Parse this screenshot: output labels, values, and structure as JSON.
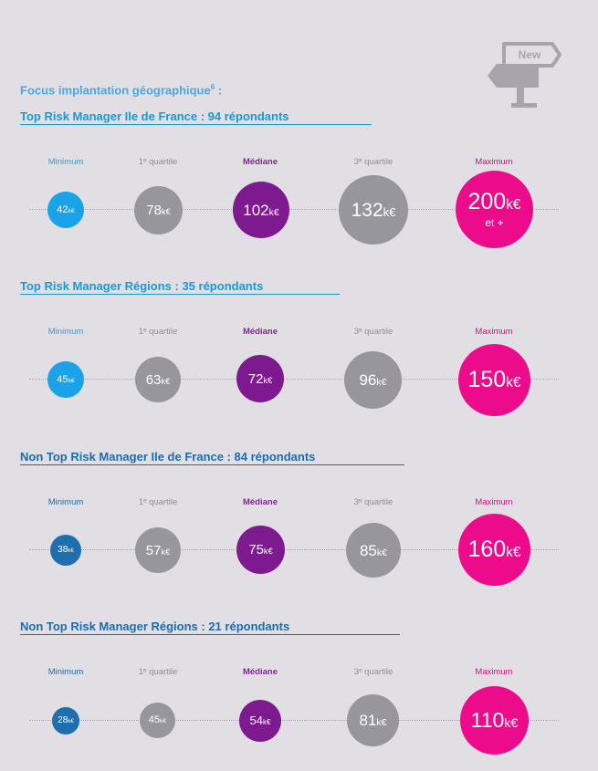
{
  "header": {
    "focus_title": "Focus implantation géographique",
    "focus_footnote": "6",
    "focus_suffix": " :",
    "new_badge": "New"
  },
  "labels": {
    "minimum": "Minimum",
    "q1": "1ᵉ quartile",
    "median": "Médiane",
    "q3": "3ᵉ quartile",
    "maximum": "Maximum"
  },
  "sections": [
    {
      "title": "Top Risk Manager Ile de France : 94 répondants",
      "minimum": "42",
      "q1": "78",
      "median": "102",
      "q3": "132",
      "maximum": "200",
      "maximum_extra": "et +"
    },
    {
      "title": "Top Risk Manager Régions : 35 répondants",
      "minimum": "45",
      "q1": "63",
      "median": "72",
      "q3": "96",
      "maximum": "150"
    },
    {
      "title": "Non Top Risk Manager Ile de France : 84 répondants",
      "minimum": "38",
      "q1": "57",
      "median": "75",
      "q3": "85",
      "maximum": "160"
    },
    {
      "title": "Non Top Risk Manager Régions : 21 répondants",
      "minimum": "28",
      "q1": "45",
      "median": "54",
      "q3": "81",
      "maximum": "110"
    }
  ],
  "unit": "k€",
  "colors": {
    "minimum": "#1aa3e8",
    "minimum_dark": "#1f6eae",
    "quartile": "#97969c",
    "median": "#7d1a8f",
    "maximum": "#ec0c8b",
    "background": "#e1dfe3"
  }
}
